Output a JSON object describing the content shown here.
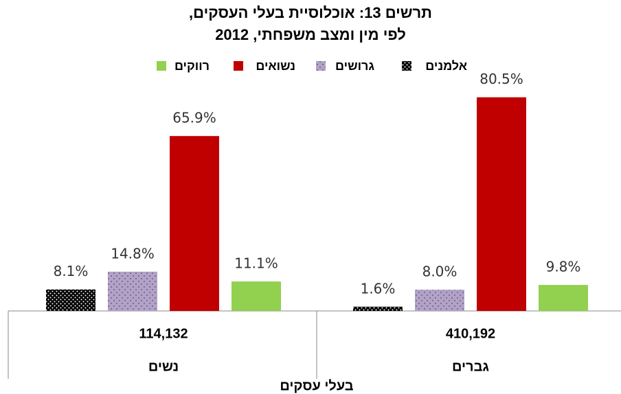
{
  "chart_data": {
    "type": "bar",
    "title": [
      "תרשים 13: אוכלוסיית בעלי העסקים,",
      "לפי מין ומצב משפחתי, 2012"
    ],
    "categories": [
      "נשים",
      "גברים"
    ],
    "category_counts": [
      "114,132",
      "410,192"
    ],
    "x_label": "בעלי עסקים",
    "series": [
      {
        "name": "אלמנים",
        "color": "#000000",
        "pattern": "dots",
        "values": [
          8.1,
          1.6
        ],
        "value_labels": [
          "8.1%",
          "1.6%"
        ]
      },
      {
        "name": "גרושים",
        "color": "#b3a2c7",
        "pattern": "dots",
        "values": [
          14.8,
          8.0
        ],
        "value_labels": [
          "14.8%",
          "8.0%"
        ]
      },
      {
        "name": "נשואים",
        "color": "#c00000",
        "values": [
          65.9,
          80.5
        ],
        "value_labels": [
          "65.9%",
          "80.5%"
        ]
      },
      {
        "name": "רווקים",
        "color": "#92d050",
        "values": [
          11.1,
          9.8
        ],
        "value_labels": [
          "11.1%",
          "9.8%"
        ]
      }
    ],
    "ylim": [
      0,
      90
    ]
  }
}
